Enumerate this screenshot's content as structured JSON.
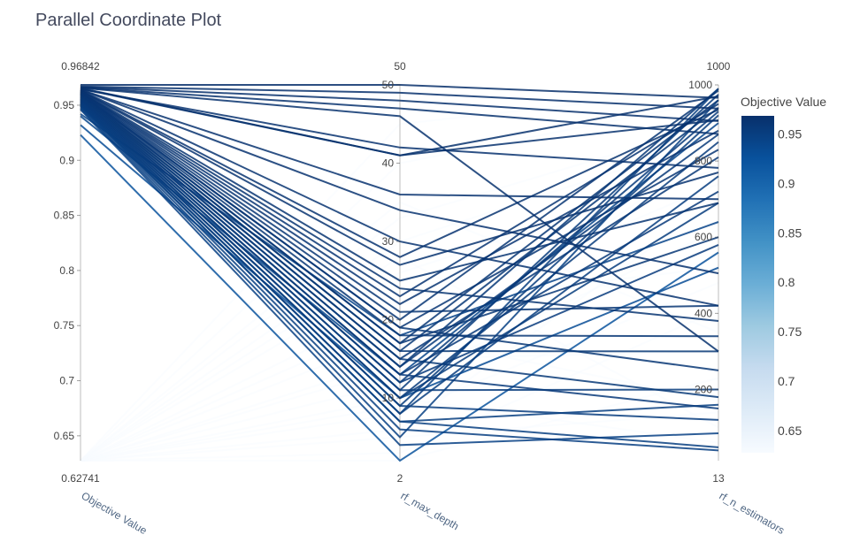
{
  "chart_data": {
    "type": "parallel_coordinates",
    "title": "Parallel Coordinate Plot",
    "colorbar": {
      "title": "Objective Value",
      "range": [
        0.62741,
        0.96842
      ],
      "ticks": [
        0.65,
        0.7,
        0.75,
        0.8,
        0.85,
        0.9,
        0.95
      ],
      "colors": [
        "#f7fbff",
        "#deebf7",
        "#c6dbef",
        "#9ecae1",
        "#6baed6",
        "#4292c6",
        "#2171b5",
        "#08519c",
        "#08306b"
      ]
    },
    "dimensions": [
      {
        "label": "Objective Value",
        "range": [
          0.62741,
          0.96842
        ],
        "min_label": "0.62741",
        "max_label": "0.96842",
        "ticks": [
          0.65,
          0.7,
          0.75,
          0.8,
          0.85,
          0.9,
          0.95
        ]
      },
      {
        "label": "rf_max_depth",
        "range": [
          2,
          50
        ],
        "min_label": "2",
        "max_label": "50",
        "ticks": [
          10,
          20,
          30,
          40,
          50
        ]
      },
      {
        "label": "rf_n_estimators",
        "range": [
          13,
          1000
        ],
        "min_label": "13",
        "max_label": "1000",
        "ticks": [
          200,
          400,
          600,
          800,
          1000
        ]
      }
    ],
    "trials": [
      [
        0.9684,
        50,
        966
      ],
      [
        0.967,
        49,
        938
      ],
      [
        0.9665,
        48,
        905
      ],
      [
        0.966,
        47,
        871
      ],
      [
        0.9658,
        46,
        300
      ],
      [
        0.9655,
        41,
        970
      ],
      [
        0.965,
        41,
        907
      ],
      [
        0.9645,
        42,
        782
      ],
      [
        0.9641,
        36,
        700
      ],
      [
        0.964,
        34,
        505
      ],
      [
        0.9635,
        30,
        420
      ],
      [
        0.9633,
        28,
        935
      ],
      [
        0.963,
        27,
        770
      ],
      [
        0.9625,
        25,
        690
      ],
      [
        0.962,
        24,
        380
      ],
      [
        0.9618,
        23,
        950
      ],
      [
        0.9615,
        22,
        880
      ],
      [
        0.961,
        21,
        420
      ],
      [
        0.9608,
        20,
        985
      ],
      [
        0.9605,
        19,
        830
      ],
      [
        0.96,
        19,
        250
      ],
      [
        0.9598,
        18,
        340
      ],
      [
        0.9595,
        17,
        960
      ],
      [
        0.959,
        17,
        600
      ],
      [
        0.9585,
        16,
        300
      ],
      [
        0.958,
        16,
        940
      ],
      [
        0.9575,
        15,
        810
      ],
      [
        0.957,
        15,
        180
      ],
      [
        0.9565,
        14,
        870
      ],
      [
        0.956,
        14,
        990
      ],
      [
        0.9555,
        13,
        720
      ],
      [
        0.955,
        13,
        150
      ],
      [
        0.9545,
        12,
        930
      ],
      [
        0.954,
        12,
        580
      ],
      [
        0.9535,
        11,
        975
      ],
      [
        0.953,
        11,
        200
      ],
      [
        0.9525,
        10,
        850
      ],
      [
        0.952,
        10,
        690
      ],
      [
        0.9515,
        9,
        920
      ],
      [
        0.951,
        9,
        120
      ],
      [
        0.9505,
        8,
        990
      ],
      [
        0.95,
        8,
        760
      ],
      [
        0.9495,
        7,
        48
      ],
      [
        0.949,
        7,
        160
      ],
      [
        0.948,
        6,
        40
      ],
      [
        0.947,
        5,
        960
      ],
      [
        0.946,
        4,
        85
      ],
      [
        0.942,
        18,
        640
      ],
      [
        0.94,
        13,
        900
      ],
      [
        0.932,
        10,
        520
      ],
      [
        0.923,
        2,
        560
      ],
      [
        0.6274,
        2,
        230
      ],
      [
        0.6274,
        5,
        140
      ],
      [
        0.6274,
        8,
        480
      ],
      [
        0.6274,
        12,
        620
      ],
      [
        0.6274,
        20,
        740
      ],
      [
        0.6274,
        26,
        780
      ],
      [
        0.6274,
        33,
        900
      ],
      [
        0.6274,
        40,
        960
      ],
      [
        0.6274,
        15,
        300
      ],
      [
        0.6274,
        10,
        60
      ],
      [
        0.6274,
        22,
        520
      ],
      [
        0.6274,
        3,
        410
      ],
      [
        0.6274,
        18,
        170
      ],
      [
        0.6274,
        6,
        700
      ],
      [
        0.6274,
        30,
        860
      ],
      [
        0.6274,
        9,
        940
      ],
      [
        0.6274,
        45,
        990
      ],
      [
        0.6274,
        35,
        350
      ],
      [
        0.6274,
        14,
        840
      ],
      [
        0.6274,
        28,
        100
      ]
    ]
  }
}
